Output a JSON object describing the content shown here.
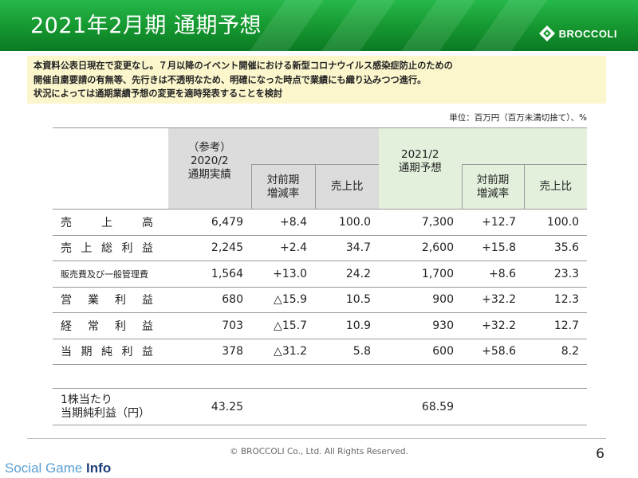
{
  "header": {
    "title": "2021年2月期 通期予想",
    "logo_text": "BROCCOLI"
  },
  "notice": {
    "lines": [
      "本資料公表日現在で変更なし。７月以降のイベント開催における新型コロナウイルス感染症防止のための",
      "開催自粛要請の有無等、先行きは不透明なため、明確になった時点で業績にも織り込みつつ進行。",
      "状況によっては通期業績予想の変更を適時発表することを検討"
    ]
  },
  "unit_note": "単位：百万円（百万未満切捨て）、%",
  "table": {
    "prev_header": [
      "（参考）",
      "2020/2",
      "通期実績"
    ],
    "next_header": [
      "2021/2",
      "通期予想"
    ],
    "yoy_header": [
      "対前期",
      "増減率"
    ],
    "ratio_header": "売上比",
    "rows": [
      {
        "label": [
          "売",
          "上",
          "高"
        ],
        "prev": "6,479",
        "prev_yoy": "+8.4",
        "prev_ratio": "100.0",
        "next": "7,300",
        "next_yoy": "+12.7",
        "next_ratio": "100.0"
      },
      {
        "label": [
          "売",
          "上",
          "総",
          "利",
          "益"
        ],
        "prev": "2,245",
        "prev_yoy": "+2.4",
        "prev_ratio": "34.7",
        "next": "2,600",
        "next_yoy": "+15.8",
        "next_ratio": "35.6"
      },
      {
        "label": [
          "販売費及び一般管理費"
        ],
        "prev": "1,564",
        "prev_yoy": "+13.0",
        "prev_ratio": "24.2",
        "next": "1,700",
        "next_yoy": "+8.6",
        "next_ratio": "23.3"
      },
      {
        "label": [
          "営",
          "業",
          "利",
          "益"
        ],
        "prev": "680",
        "prev_yoy": "△15.9",
        "prev_ratio": "10.5",
        "next": "900",
        "next_yoy": "+32.2",
        "next_ratio": "12.3"
      },
      {
        "label": [
          "経",
          "常",
          "利",
          "益"
        ],
        "prev": "703",
        "prev_yoy": "△15.7",
        "prev_ratio": "10.9",
        "next": "930",
        "next_yoy": "+32.2",
        "next_ratio": "12.7"
      },
      {
        "label": [
          "当",
          "期",
          "純",
          "利",
          "益"
        ],
        "prev": "378",
        "prev_yoy": "△31.2",
        "prev_ratio": "5.8",
        "next": "600",
        "next_yoy": "+58.6",
        "next_ratio": "8.2"
      }
    ],
    "eps": {
      "label": [
        "1株当たり",
        "当期純利益（円）"
      ],
      "prev": "43.25",
      "next": "68.59"
    }
  },
  "footer": {
    "copyright": "© BROCCOLI Co., Ltd. All Rights Reserved.",
    "page_number": "6",
    "watermark_light": "Social Game ",
    "watermark_bold": "Info"
  }
}
